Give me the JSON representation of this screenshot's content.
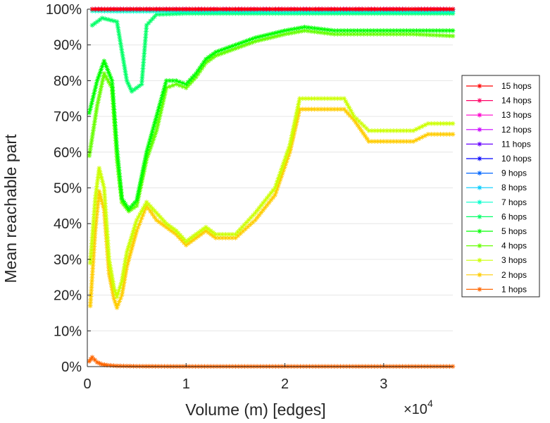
{
  "chart_data": {
    "type": "line",
    "title": "",
    "xlabel": "Volume (m) [edges]",
    "ylabel": "Mean reachable part",
    "x_multiplier_label": "×10",
    "x_multiplier_exp": "4",
    "xlim": [
      0,
      3.7
    ],
    "ylim": [
      0,
      100
    ],
    "x_ticks": [
      0,
      1,
      2,
      3
    ],
    "x_tick_labels": [
      "0",
      "1",
      "2",
      "3"
    ],
    "y_ticks": [
      0,
      10,
      20,
      30,
      40,
      50,
      60,
      70,
      80,
      90,
      100
    ],
    "y_tick_labels": [
      "0%",
      "10%",
      "20%",
      "30%",
      "40%",
      "50%",
      "60%",
      "70%",
      "80%",
      "90%",
      "100%"
    ],
    "grid": "horizontal",
    "legend_position": "right",
    "series": [
      {
        "name": "15 hops",
        "color": "#ff0000",
        "x": [
          0.05,
          0.3,
          0.6,
          1.0,
          1.5,
          2.0,
          2.5,
          3.0,
          3.7
        ],
        "y": [
          100,
          100,
          100,
          100,
          100,
          100,
          100,
          100,
          100
        ]
      },
      {
        "name": "14 hops",
        "color": "#ff0066",
        "x": [
          0.05,
          0.3,
          0.6,
          1.0,
          1.5,
          2.0,
          2.5,
          3.0,
          3.7
        ],
        "y": [
          100,
          100,
          100,
          100,
          100,
          100,
          100,
          100,
          100
        ]
      },
      {
        "name": "13 hops",
        "color": "#ff00cc",
        "x": [
          0.05,
          0.3,
          0.6,
          1.0,
          1.5,
          2.0,
          2.5,
          3.0,
          3.7
        ],
        "y": [
          100,
          100,
          100,
          100,
          100,
          100,
          100,
          100,
          100
        ]
      },
      {
        "name": "12 hops",
        "color": "#cc00ff",
        "x": [
          0.05,
          0.3,
          0.6,
          1.0,
          1.5,
          2.0,
          2.5,
          3.0,
          3.7
        ],
        "y": [
          100,
          100,
          100,
          100,
          100,
          100,
          100,
          100,
          100
        ]
      },
      {
        "name": "11 hops",
        "color": "#6600ff",
        "x": [
          0.05,
          0.3,
          0.6,
          1.0,
          1.5,
          2.0,
          2.5,
          3.0,
          3.7
        ],
        "y": [
          100,
          100,
          100,
          100,
          100,
          100,
          100,
          100,
          100
        ]
      },
      {
        "name": "10 hops",
        "color": "#0000ff",
        "x": [
          0.05,
          0.3,
          0.6,
          1.0,
          1.5,
          2.0,
          2.5,
          3.0,
          3.7
        ],
        "y": [
          100,
          100,
          100,
          100,
          100,
          100,
          100,
          100,
          100
        ]
      },
      {
        "name": "9 hops",
        "color": "#0066ff",
        "x": [
          0.05,
          0.3,
          0.6,
          1.0,
          1.5,
          2.0,
          2.5,
          3.0,
          3.7
        ],
        "y": [
          100,
          100,
          100,
          100,
          100,
          100,
          100,
          100,
          100
        ]
      },
      {
        "name": "8 hops",
        "color": "#00ccff",
        "x": [
          0.05,
          0.3,
          0.6,
          1.0,
          1.5,
          2.0,
          2.5,
          3.0,
          3.7
        ],
        "y": [
          100,
          99.9,
          99.9,
          99.9,
          99.9,
          99.9,
          99.9,
          99.9,
          99.9
        ]
      },
      {
        "name": "7 hops",
        "color": "#00ffcc",
        "x": [
          0.05,
          0.3,
          0.6,
          1.0,
          1.5,
          2.0,
          2.5,
          3.0,
          3.7
        ],
        "y": [
          99.5,
          99.4,
          99.4,
          99.3,
          99.3,
          99.2,
          99.3,
          99.3,
          99.3
        ]
      },
      {
        "name": "6 hops",
        "color": "#00ff66",
        "x": [
          0.05,
          0.15,
          0.3,
          0.4,
          0.45,
          0.55,
          0.6,
          0.7,
          1.0,
          1.5,
          2.0,
          2.5,
          3.0,
          3.7
        ],
        "y": [
          95.5,
          97.5,
          96.5,
          80,
          77,
          79,
          95.5,
          98.5,
          98.8,
          98.8,
          98.8,
          98.8,
          98.8,
          98.8
        ]
      },
      {
        "name": "5 hops",
        "color": "#00ff00",
        "x": [
          0.02,
          0.1,
          0.17,
          0.25,
          0.3,
          0.35,
          0.42,
          0.5,
          0.6,
          0.7,
          0.8,
          0.9,
          1.0,
          1.1,
          1.2,
          1.3,
          1.5,
          1.7,
          2.0,
          2.2,
          2.5,
          2.8,
          3.0,
          3.3,
          3.7
        ],
        "y": [
          71,
          80,
          85.5,
          80,
          61,
          47,
          44,
          46.5,
          60,
          70,
          80,
          80,
          79,
          82,
          86,
          88,
          90,
          92,
          94,
          95,
          94,
          94,
          94,
          94,
          94
        ]
      },
      {
        "name": "4 hops",
        "color": "#66ff00",
        "x": [
          0.02,
          0.1,
          0.17,
          0.25,
          0.3,
          0.35,
          0.42,
          0.5,
          0.6,
          0.7,
          0.8,
          0.9,
          1.0,
          1.1,
          1.2,
          1.3,
          1.5,
          1.7,
          2.0,
          2.2,
          2.5,
          2.8,
          3.0,
          3.3,
          3.7
        ],
        "y": [
          59,
          73,
          82,
          78,
          58,
          46,
          43.5,
          45,
          58,
          66,
          78,
          79,
          78,
          81,
          85,
          87,
          89,
          91,
          93,
          94,
          93,
          93,
          93,
          93,
          92.5
        ]
      },
      {
        "name": "3 hops",
        "color": "#ccff00",
        "x": [
          0.03,
          0.08,
          0.12,
          0.17,
          0.22,
          0.27,
          0.3,
          0.35,
          0.4,
          0.5,
          0.6,
          0.7,
          0.8,
          0.9,
          1.0,
          1.1,
          1.2,
          1.3,
          1.5,
          1.7,
          1.9,
          2.05,
          2.15,
          2.3,
          2.6,
          2.7,
          2.85,
          3.0,
          3.3,
          3.45,
          3.7
        ],
        "y": [
          29,
          47,
          55.5,
          50,
          30,
          22,
          19.5,
          24,
          32,
          41,
          46,
          43,
          40,
          38,
          35,
          37,
          39,
          37,
          37,
          43,
          50,
          62,
          75,
          75,
          75,
          70,
          66,
          66,
          66,
          68,
          68
        ]
      },
      {
        "name": "2 hops",
        "color": "#ffcc00",
        "x": [
          0.03,
          0.08,
          0.12,
          0.17,
          0.22,
          0.27,
          0.3,
          0.35,
          0.4,
          0.5,
          0.6,
          0.7,
          0.8,
          0.9,
          1.0,
          1.1,
          1.2,
          1.3,
          1.5,
          1.7,
          1.9,
          2.05,
          2.15,
          2.3,
          2.6,
          2.7,
          2.85,
          3.0,
          3.3,
          3.45,
          3.7
        ],
        "y": [
          17,
          38,
          49,
          44,
          26,
          19,
          16.5,
          20,
          28,
          38,
          45,
          41,
          39,
          37,
          34,
          36,
          38,
          36,
          36,
          41,
          48,
          60,
          72,
          72,
          72,
          69,
          63,
          63,
          63,
          65,
          65
        ]
      },
      {
        "name": "1 hops",
        "color": "#ff6600",
        "x": [
          0.02,
          0.05,
          0.1,
          0.15,
          0.2,
          0.3,
          0.5,
          1.0,
          1.5,
          2.0,
          2.5,
          3.0,
          3.7
        ],
        "y": [
          1.5,
          2.6,
          1.2,
          0.6,
          0.4,
          0.2,
          0.1,
          0.05,
          0.05,
          0.05,
          0.05,
          0.05,
          0.05
        ]
      }
    ]
  }
}
